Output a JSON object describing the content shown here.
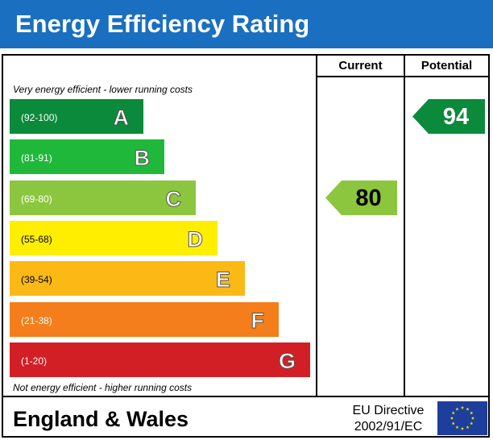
{
  "title": "Energy Efficiency Rating",
  "columns": {
    "current": "Current",
    "potential": "Potential"
  },
  "notes": {
    "top": "Very energy efficient - lower running costs",
    "bottom": "Not energy efficient - higher running costs"
  },
  "footer": {
    "region": "England & Wales",
    "directive_line1": "EU Directive",
    "directive_line2": "2002/91/EC"
  },
  "chart_data": {
    "type": "bar",
    "bands": [
      {
        "letter": "A",
        "range": "(92-100)",
        "min": 92,
        "max": 100,
        "color": "#0b8a3b"
      },
      {
        "letter": "B",
        "range": "(81-91)",
        "min": 81,
        "max": 91,
        "color": "#1fb83a"
      },
      {
        "letter": "C",
        "range": "(69-80)",
        "min": 69,
        "max": 80,
        "color": "#8cc63f"
      },
      {
        "letter": "D",
        "range": "(55-68)",
        "min": 55,
        "max": 68,
        "color": "#ffee00"
      },
      {
        "letter": "E",
        "range": "(39-54)",
        "min": 39,
        "max": 54,
        "color": "#fbb916"
      },
      {
        "letter": "F",
        "range": "(21-38)",
        "min": 21,
        "max": 38,
        "color": "#f37e1b"
      },
      {
        "letter": "G",
        "range": "(1-20)",
        "min": 1,
        "max": 20,
        "color": "#d21f26"
      }
    ],
    "current": {
      "value": 80,
      "band": "C",
      "color": "#8cc63f"
    },
    "potential": {
      "value": 94,
      "band": "A",
      "color": "#0b8a3b"
    }
  }
}
